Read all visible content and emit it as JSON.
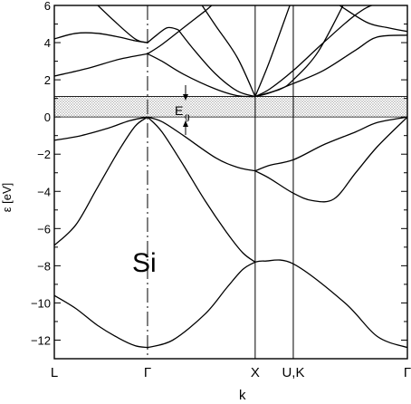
{
  "chart_data": {
    "type": "line",
    "material_label": "Si",
    "xlabel": "k",
    "ylabel": "ε  [eV]",
    "gap_label": "E",
    "gap_label_subscript": "g",
    "ylim": [
      -13,
      6
    ],
    "y_ticks": [
      -12,
      -10,
      -8,
      -6,
      -4,
      -2,
      0,
      2,
      4,
      6
    ],
    "gap_band": [
      0.0,
      1.1
    ],
    "k_points": [
      {
        "label": "L",
        "x": 0.0
      },
      {
        "label": "Γ",
        "x": 0.866
      },
      {
        "label": "X",
        "x": 1.866
      },
      {
        "label": "U,K",
        "x": 2.22
      },
      {
        "label": "Γ",
        "x": 3.28
      }
    ],
    "series": [
      {
        "x": [
          0.0,
          0.2,
          0.4,
          0.6,
          0.75,
          0.866
        ],
        "values": [
          -9.6,
          -10.3,
          -11.2,
          -11.9,
          -12.3,
          -12.4
        ]
      },
      {
        "x": [
          0.866,
          1.1,
          1.4,
          1.6,
          1.75,
          1.866
        ],
        "values": [
          -12.4,
          -12.0,
          -10.6,
          -9.2,
          -8.2,
          -7.8
        ]
      },
      {
        "x": [
          1.866,
          1.95,
          2.22,
          2.7,
          3.0,
          3.28
        ],
        "values": [
          -7.8,
          -7.75,
          -7.9,
          -10.0,
          -11.8,
          -12.4
        ]
      },
      {
        "x": [
          0.0,
          0.2,
          0.4,
          0.6,
          0.75,
          0.866
        ],
        "values": [
          -6.9,
          -5.8,
          -3.8,
          -1.8,
          -0.5,
          0.0
        ]
      },
      {
        "x": [
          0.866,
          1.0,
          1.2,
          1.4,
          1.6,
          1.75,
          1.866
        ],
        "values": [
          0.0,
          -0.8,
          -2.6,
          -4.5,
          -6.2,
          -7.3,
          -7.8
        ]
      },
      {
        "x": [
          0.0,
          0.25,
          0.5,
          0.7,
          0.866
        ],
        "values": [
          -1.25,
          -1.0,
          -0.6,
          -0.2,
          0.0
        ]
      },
      {
        "x": [
          0.866,
          1.0,
          1.2,
          1.5,
          1.7,
          1.866
        ],
        "values": [
          0.0,
          -0.25,
          -1.0,
          -2.2,
          -2.7,
          -2.9
        ]
      },
      {
        "x": [
          1.866,
          2.0,
          2.22,
          2.4,
          2.6,
          2.8,
          3.0,
          3.28
        ],
        "values": [
          -2.9,
          -3.3,
          -4.1,
          -4.5,
          -4.4,
          -3.0,
          -1.6,
          0.0
        ]
      },
      {
        "x": [
          1.866,
          2.0,
          2.22,
          2.5,
          2.8,
          3.0,
          3.28
        ],
        "values": [
          -2.9,
          -2.6,
          -2.3,
          -1.5,
          -0.8,
          -0.3,
          0.0
        ]
      },
      {
        "x": [
          0.0,
          0.3,
          0.6,
          0.866
        ],
        "values": [
          2.2,
          2.6,
          3.1,
          3.4
        ]
      },
      {
        "x": [
          0.866,
          1.0,
          1.2,
          1.5,
          1.7,
          1.866
        ],
        "values": [
          3.4,
          3.0,
          2.3,
          1.5,
          1.15,
          1.1
        ]
      },
      {
        "x": [
          1.866,
          2.0,
          2.22,
          2.5,
          2.8,
          3.0,
          3.28
        ],
        "values": [
          1.1,
          1.3,
          1.8,
          2.5,
          3.6,
          4.3,
          4.4
        ]
      },
      {
        "x": [
          0.0,
          0.2,
          0.4,
          0.6,
          0.75,
          0.866
        ],
        "values": [
          4.2,
          4.5,
          4.5,
          4.3,
          4.1,
          4.0
        ]
      },
      {
        "x": [
          0.866,
          0.95,
          1.05,
          1.15
        ],
        "values": [
          4.0,
          4.4,
          4.8,
          4.7
        ]
      },
      {
        "x": [
          1.15,
          1.3,
          1.5,
          1.7,
          1.866
        ],
        "values": [
          4.7,
          3.6,
          2.3,
          1.4,
          1.1
        ]
      },
      {
        "x": [
          1.866,
          2.0,
          2.22,
          2.5,
          2.8,
          3.0,
          3.28
        ],
        "values": [
          1.1,
          1.5,
          2.5,
          4.0,
          5.5,
          6.1,
          6.3
        ]
      },
      {
        "x": [
          0.866,
          1.0,
          1.2,
          1.4,
          1.5
        ],
        "values": [
          3.4,
          3.9,
          4.8,
          5.7,
          6.2
        ]
      },
      {
        "x": [
          0.35,
          0.55,
          0.75,
          0.866
        ],
        "values": [
          6.3,
          5.2,
          4.2,
          4.0
        ]
      },
      {
        "x": [
          1.35,
          1.5,
          1.7,
          1.866
        ],
        "values": [
          6.2,
          4.9,
          3.2,
          1.1
        ]
      },
      {
        "x": [
          1.866,
          2.0,
          2.2
        ],
        "values": [
          1.1,
          3.0,
          6.2
        ]
      },
      {
        "x": [
          2.6,
          2.9,
          3.1,
          3.28
        ],
        "values": [
          6.2,
          5.1,
          4.8,
          4.6
        ]
      },
      {
        "x": [
          1.866,
          2.1,
          2.22,
          2.45,
          2.7
        ],
        "values": [
          1.1,
          1.5,
          2.0,
          3.5,
          6.2
        ]
      }
    ]
  }
}
